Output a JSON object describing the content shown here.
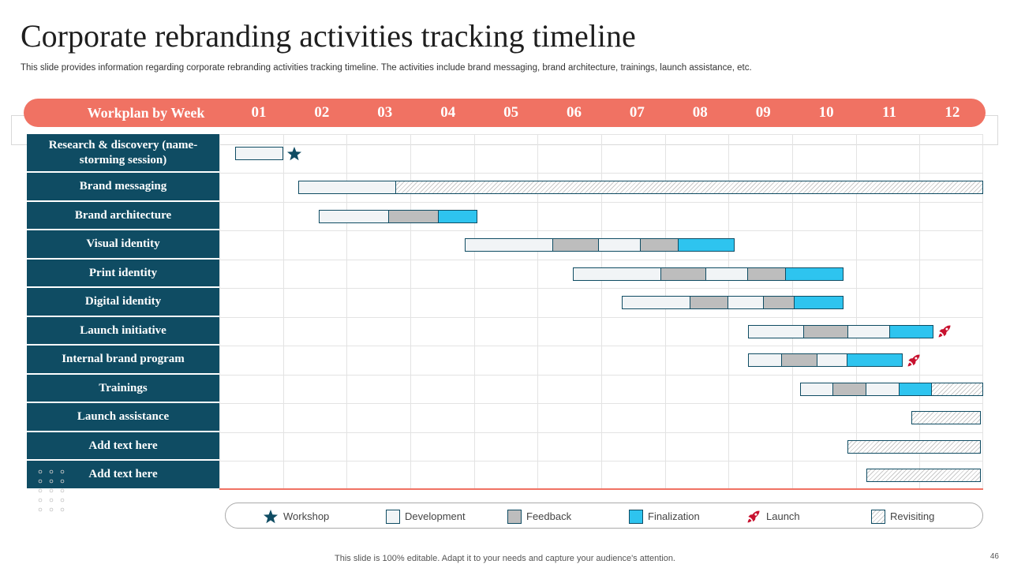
{
  "title": "Corporate rebranding activities tracking timeline",
  "subtitle": "This slide provides information regarding corporate rebranding activities tracking timeline. The activities include brand messaging, brand architecture, trainings, launch assistance, etc.",
  "header": {
    "label": "Workplan by Week",
    "weeks": [
      "01",
      "02",
      "03",
      "04",
      "05",
      "06",
      "07",
      "08",
      "09",
      "10",
      "11",
      "12"
    ]
  },
  "colors": {
    "header": "#f07263",
    "label_column": "#0f4c63",
    "development": "#f1f4f6",
    "feedback": "#bdbdbd",
    "finalization": "#2ec4ef",
    "launch_icon": "#c8102e",
    "workshop_icon": "#0f4c63"
  },
  "activities": [
    {
      "label": "Research & discovery (name-storming session)",
      "segments": [
        {
          "type": "development",
          "start": 0.25,
          "end": 1.0
        }
      ],
      "marker": "workshop"
    },
    {
      "label": "Brand messaging",
      "segments": [
        {
          "type": "development",
          "start": 1.24,
          "end": 2.78
        },
        {
          "type": "revisiting",
          "start": 2.78,
          "end": 12.0
        }
      ]
    },
    {
      "label": "Brand architecture",
      "segments": [
        {
          "type": "development",
          "start": 1.56,
          "end": 2.66
        },
        {
          "type": "feedback",
          "start": 2.66,
          "end": 3.45
        },
        {
          "type": "finalization",
          "start": 3.45,
          "end": 4.05
        }
      ]
    },
    {
      "label": "Visual identity",
      "segments": [
        {
          "type": "development",
          "start": 3.86,
          "end": 5.24
        },
        {
          "type": "feedback",
          "start": 5.24,
          "end": 5.96
        },
        {
          "type": "development",
          "start": 5.96,
          "end": 6.62
        },
        {
          "type": "feedback",
          "start": 6.62,
          "end": 7.22
        },
        {
          "type": "finalization",
          "start": 7.22,
          "end": 8.1
        }
      ]
    },
    {
      "label": "Print identity",
      "segments": [
        {
          "type": "development",
          "start": 5.55,
          "end": 6.94
        },
        {
          "type": "feedback",
          "start": 6.94,
          "end": 7.65
        },
        {
          "type": "development",
          "start": 7.65,
          "end": 8.31
        },
        {
          "type": "feedback",
          "start": 8.31,
          "end": 8.9
        },
        {
          "type": "finalization",
          "start": 8.9,
          "end": 9.8
        }
      ]
    },
    {
      "label": "Digital identity",
      "segments": [
        {
          "type": "development",
          "start": 6.32,
          "end": 7.4
        },
        {
          "type": "feedback",
          "start": 7.4,
          "end": 7.99
        },
        {
          "type": "development",
          "start": 7.99,
          "end": 8.55
        },
        {
          "type": "feedback",
          "start": 8.55,
          "end": 9.04
        },
        {
          "type": "finalization",
          "start": 9.04,
          "end": 9.8
        }
      ]
    },
    {
      "label": "Launch initiative",
      "segments": [
        {
          "type": "development",
          "start": 8.3,
          "end": 9.18
        },
        {
          "type": "feedback",
          "start": 9.18,
          "end": 9.88
        },
        {
          "type": "development",
          "start": 9.88,
          "end": 10.54
        },
        {
          "type": "finalization",
          "start": 10.54,
          "end": 11.22
        }
      ],
      "marker": "launch"
    },
    {
      "label": "Internal brand program",
      "segments": [
        {
          "type": "development",
          "start": 8.3,
          "end": 8.84
        },
        {
          "type": "feedback",
          "start": 8.84,
          "end": 9.4
        },
        {
          "type": "development",
          "start": 9.4,
          "end": 9.87
        },
        {
          "type": "finalization",
          "start": 9.87,
          "end": 10.74
        }
      ],
      "marker": "launch"
    },
    {
      "label": "Trainings",
      "segments": [
        {
          "type": "development",
          "start": 9.13,
          "end": 9.64
        },
        {
          "type": "feedback",
          "start": 9.64,
          "end": 10.17
        },
        {
          "type": "development",
          "start": 10.17,
          "end": 10.68
        },
        {
          "type": "finalization",
          "start": 10.68,
          "end": 11.19
        },
        {
          "type": "revisiting",
          "start": 11.19,
          "end": 12.0
        }
      ]
    },
    {
      "label": "Launch assistance",
      "segments": [
        {
          "type": "revisiting",
          "start": 10.87,
          "end": 11.96
        }
      ]
    },
    {
      "label": "Add text here",
      "segments": [
        {
          "type": "revisiting",
          "start": 9.87,
          "end": 11.96
        }
      ]
    },
    {
      "label": "Add text here",
      "segments": [
        {
          "type": "revisiting",
          "start": 10.16,
          "end": 11.96
        }
      ]
    }
  ],
  "legend": [
    {
      "key": "workshop",
      "label": "Workshop"
    },
    {
      "key": "development",
      "label": "Development"
    },
    {
      "key": "feedback",
      "label": "Feedback"
    },
    {
      "key": "finalization",
      "label": "Finalization"
    },
    {
      "key": "launch",
      "label": "Launch"
    },
    {
      "key": "revisiting",
      "label": "Revisiting"
    }
  ],
  "footer": "This slide is 100% editable. Adapt it to your needs and capture your audience's attention.",
  "page_number": "46"
}
